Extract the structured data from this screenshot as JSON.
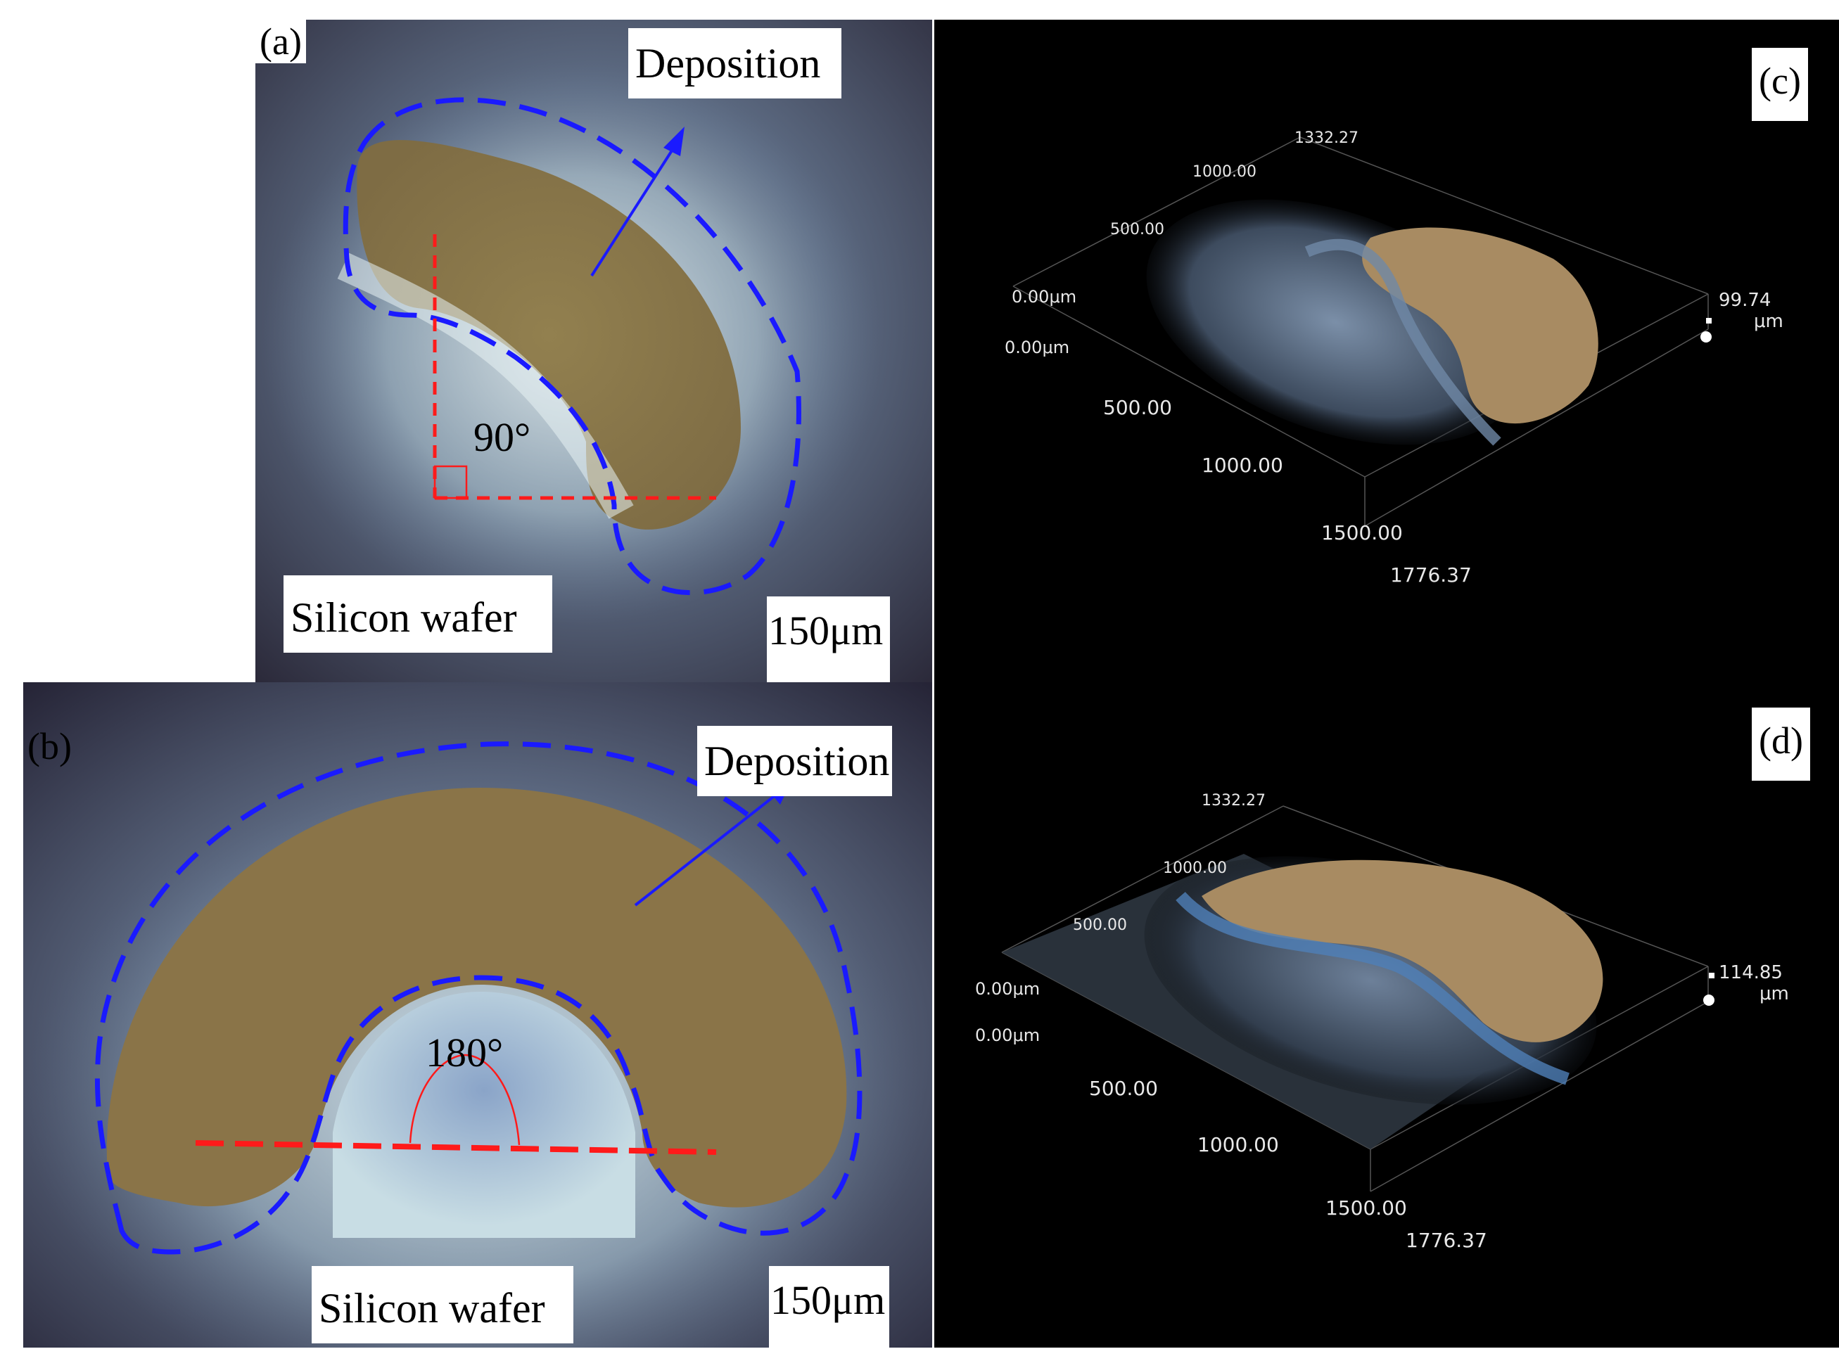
{
  "panels": {
    "a": {
      "label": "(a)",
      "deposition": "Deposition",
      "angle": "90°",
      "substrate": "Silicon wafer",
      "scale_bar": "150μm"
    },
    "b": {
      "label": "(b)",
      "deposition": "Deposition",
      "angle": "180°",
      "substrate": "Silicon wafer",
      "scale_bar": "150μm"
    },
    "c": {
      "label": "(c)",
      "ticks_back": [
        "1332.27",
        "1000.00",
        "500.00"
      ],
      "origin_top": "0.00μm",
      "origin_bottom": "0.00μm",
      "ticks_front": [
        "500.00",
        "1000.00",
        "1500.00",
        "1776.37"
      ],
      "height_max": "99.74",
      "height_unit": "μm"
    },
    "d": {
      "label": "(d)",
      "ticks_back": [
        "1332.27",
        "1000.00",
        "500.00"
      ],
      "origin_top": "0.00μm",
      "origin_bottom": "0.00μm",
      "ticks_front": [
        "500.00",
        "1000.00",
        "1500.00",
        "1776.37"
      ],
      "height_max": "114.85",
      "height_unit": "μm"
    }
  },
  "colors": {
    "outline": "#1a1aff",
    "angle_line": "#ff1a1a",
    "deposit": "#8a7448",
    "background_dark": "#000000"
  }
}
